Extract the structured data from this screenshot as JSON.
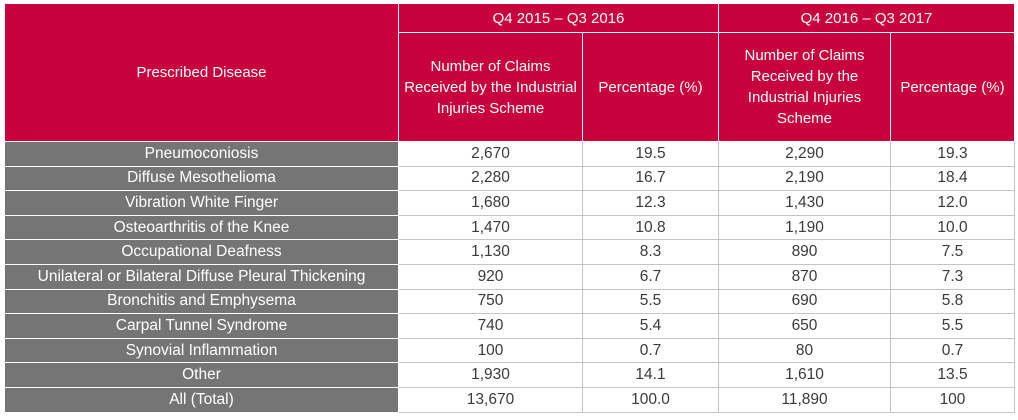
{
  "header": {
    "disease_col": "Prescribed Disease",
    "period1": "Q4 2015 – Q3 2016",
    "period2": "Q4 2016 – Q3 2017",
    "claims_col": "Number of Claims Received by the Industrial Injuries Scheme",
    "pct_col": "Percentage (%)"
  },
  "rows": [
    {
      "disease": "Pneumoconiosis",
      "claims1": "2,670",
      "pct1": "19.5",
      "claims2": "2,290",
      "pct2": "19.3"
    },
    {
      "disease": "Diffuse Mesothelioma",
      "claims1": "2,280",
      "pct1": "16.7",
      "claims2": "2,190",
      "pct2": "18.4"
    },
    {
      "disease": "Vibration White Finger",
      "claims1": "1,680",
      "pct1": "12.3",
      "claims2": "1,430",
      "pct2": "12.0"
    },
    {
      "disease": "Osteoarthritis of the Knee",
      "claims1": "1,470",
      "pct1": "10.8",
      "claims2": "1,190",
      "pct2": "10.0"
    },
    {
      "disease": "Occupational Deafness",
      "claims1": "1,130",
      "pct1": "8.3",
      "claims2": "890",
      "pct2": "7.5"
    },
    {
      "disease": "Unilateral or Bilateral Diffuse Pleural Thickening",
      "claims1": "920",
      "pct1": "6.7",
      "claims2": "870",
      "pct2": "7.3"
    },
    {
      "disease": "Bronchitis and Emphysema",
      "claims1": "750",
      "pct1": "5.5",
      "claims2": "690",
      "pct2": "5.8"
    },
    {
      "disease": "Carpal Tunnel Syndrome",
      "claims1": "740",
      "pct1": "5.4",
      "claims2": "650",
      "pct2": "5.5"
    },
    {
      "disease": "Synovial Inflammation",
      "claims1": "100",
      "pct1": "0.7",
      "claims2": "80",
      "pct2": "0.7"
    },
    {
      "disease": "Other",
      "claims1": "1,930",
      "pct1": "14.1",
      "claims2": "1,610",
      "pct2": "13.5"
    },
    {
      "disease": "All (Total)",
      "claims1": "13,670",
      "pct1": "100.0",
      "claims2": "11,890",
      "pct2": "100"
    }
  ],
  "colors": {
    "header_bg": "#c8003c",
    "disease_bg": "#757575",
    "border": "#c4c4c4"
  }
}
